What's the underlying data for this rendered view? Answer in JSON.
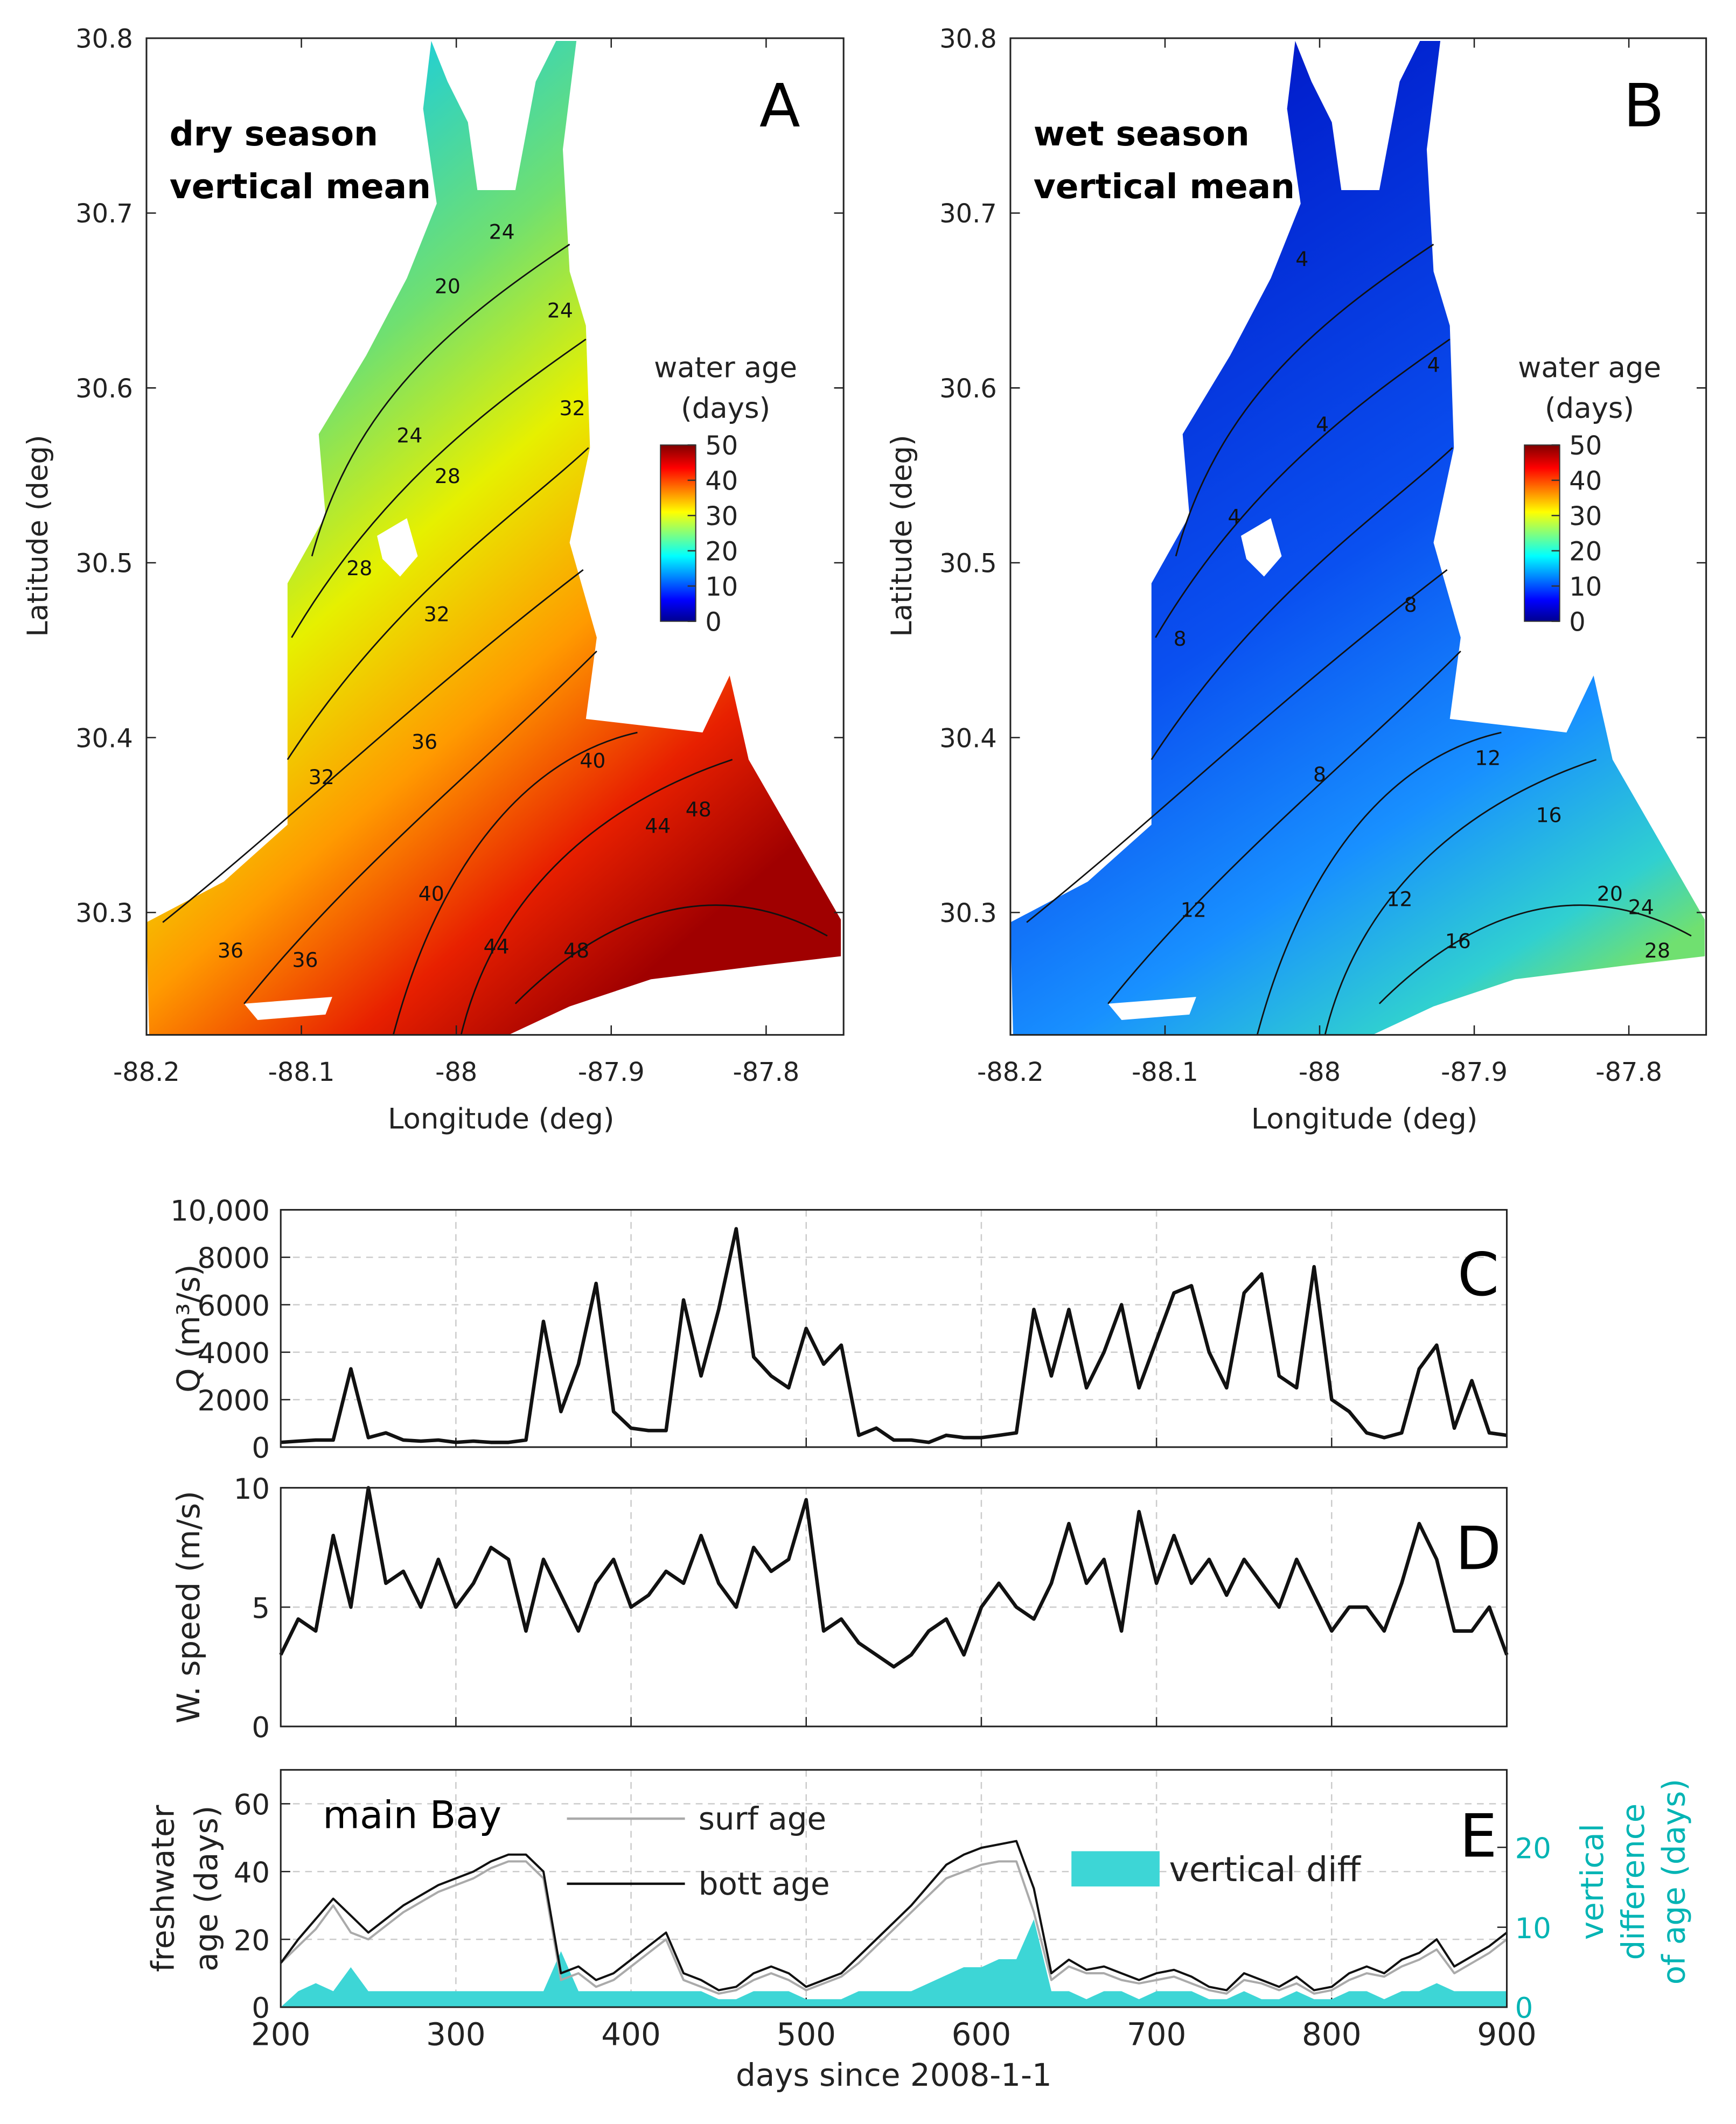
{
  "chart_data": [
    {
      "type": "map",
      "panel": "A",
      "title": [
        "dry season",
        "vertical mean"
      ],
      "xlabel": "Longitude (deg)",
      "ylabel": "Latitude (deg)",
      "xlim": [
        -88.2,
        -87.75
      ],
      "ylim": [
        30.23,
        30.8
      ],
      "xticks": [
        -88.2,
        -88.1,
        -88,
        -87.9,
        -87.8
      ],
      "yticks": [
        30.3,
        30.4,
        30.5,
        30.6,
        30.7,
        30.8
      ],
      "colorbar": {
        "label": [
          "water age",
          "(days)"
        ],
        "lim": [
          0,
          50
        ],
        "ticks": [
          0,
          10,
          20,
          30,
          40,
          50
        ]
      },
      "contour_labels": [
        24,
        20,
        24,
        24,
        28,
        32,
        28,
        32,
        32,
        36,
        40,
        44,
        48,
        40,
        44,
        48,
        36,
        36
      ]
    },
    {
      "type": "map",
      "panel": "B",
      "title": [
        "wet season",
        "vertical mean"
      ],
      "xlabel": "Longitude (deg)",
      "ylabel": "Latitude (deg)",
      "xlim": [
        -88.2,
        -87.75
      ],
      "ylim": [
        30.23,
        30.8
      ],
      "xticks": [
        -88.2,
        -88.1,
        -88,
        -87.9,
        -87.8
      ],
      "yticks": [
        30.3,
        30.4,
        30.5,
        30.6,
        30.7,
        30.8
      ],
      "colorbar": {
        "label": [
          "water age",
          "(days)"
        ],
        "lim": [
          0,
          50
        ],
        "ticks": [
          0,
          10,
          20,
          30,
          40,
          50
        ]
      },
      "contour_labels": [
        4,
        4,
        4,
        4,
        8,
        8,
        8,
        12,
        16,
        12,
        12,
        16,
        20,
        24,
        28
      ]
    },
    {
      "type": "line",
      "panel": "C",
      "ylabel": "Q (m³/s)",
      "xlim": [
        200,
        900
      ],
      "xticks": [
        200,
        300,
        400,
        500,
        600,
        700,
        800,
        900
      ],
      "xtick_labels": false,
      "ylim": [
        0,
        10000
      ],
      "yticks": [
        0,
        2000,
        4000,
        6000,
        8000,
        {
          "value": 10000,
          "label": "10,000"
        }
      ],
      "grid": true,
      "x": [
        200,
        210,
        220,
        230,
        240,
        250,
        260,
        270,
        280,
        290,
        300,
        310,
        320,
        330,
        340,
        350,
        360,
        370,
        380,
        390,
        400,
        410,
        420,
        430,
        440,
        450,
        460,
        470,
        480,
        490,
        500,
        510,
        520,
        530,
        540,
        550,
        560,
        570,
        580,
        590,
        600,
        610,
        620,
        630,
        640,
        650,
        660,
        670,
        680,
        690,
        700,
        710,
        720,
        730,
        740,
        750,
        760,
        770,
        780,
        790,
        800,
        810,
        820,
        830,
        840,
        850,
        860,
        870,
        880,
        890,
        900
      ],
      "series": [
        {
          "color": "#111111",
          "values": [
            200,
            250,
            300,
            300,
            3300,
            400,
            600,
            300,
            250,
            300,
            200,
            250,
            200,
            200,
            300,
            5300,
            1500,
            3500,
            6900,
            1500,
            800,
            700,
            700,
            6200,
            3000,
            5800,
            9200,
            3800,
            3000,
            2500,
            5000,
            3500,
            4300,
            500,
            800,
            300,
            300,
            200,
            500,
            400,
            400,
            500,
            600,
            5800,
            3000,
            5800,
            2500,
            4000,
            6000,
            2500,
            4500,
            6500,
            6800,
            4000,
            2500,
            6500,
            7300,
            3000,
            2500,
            7600,
            2000,
            1500,
            600,
            400,
            600,
            3300,
            4300,
            800,
            2800,
            600,
            500
          ]
        }
      ]
    },
    {
      "type": "line",
      "panel": "D",
      "ylabel": "W. speed (m/s)",
      "xlim": [
        200,
        900
      ],
      "xticks": [
        200,
        300,
        400,
        500,
        600,
        700,
        800,
        900
      ],
      "xtick_labels": false,
      "ylim": [
        0,
        10
      ],
      "yticks": [
        0,
        5,
        10
      ],
      "grid": true,
      "x": [
        200,
        210,
        220,
        230,
        240,
        250,
        260,
        270,
        280,
        290,
        300,
        310,
        320,
        330,
        340,
        350,
        360,
        370,
        380,
        390,
        400,
        410,
        420,
        430,
        440,
        450,
        460,
        470,
        480,
        490,
        500,
        510,
        520,
        530,
        540,
        550,
        560,
        570,
        580,
        590,
        600,
        610,
        620,
        630,
        640,
        650,
        660,
        670,
        680,
        690,
        700,
        710,
        720,
        730,
        740,
        750,
        760,
        770,
        780,
        790,
        800,
        810,
        820,
        830,
        840,
        850,
        860,
        870,
        880,
        890,
        900
      ],
      "series": [
        {
          "color": "#111111",
          "values": [
            3,
            4.5,
            4,
            8,
            5,
            10,
            6,
            6.5,
            5,
            7,
            5,
            6,
            7.5,
            7,
            4,
            7,
            5.5,
            4,
            6,
            7,
            5,
            5.5,
            6.5,
            6,
            8,
            6,
            5,
            7.5,
            6.5,
            7,
            9.5,
            4,
            4.5,
            3.5,
            3,
            2.5,
            3,
            4,
            4.5,
            3,
            5,
            6,
            5,
            4.5,
            6,
            8.5,
            6,
            7,
            4,
            9,
            6,
            8,
            6,
            7,
            5.5,
            7,
            6,
            5,
            7,
            5.5,
            4,
            5,
            5,
            4,
            6,
            8.5,
            7,
            4,
            4,
            5,
            3
          ]
        }
      ]
    },
    {
      "type": "line",
      "panel": "E",
      "annotation": "main Bay",
      "ylabel": [
        "freshwater",
        "age (days)"
      ],
      "y2label": [
        "vertical",
        "difference",
        "of age (days)"
      ],
      "xlabel": "days since 2008-1-1",
      "xlim": [
        200,
        900
      ],
      "xticks": [
        200,
        300,
        400,
        500,
        600,
        700,
        800,
        900
      ],
      "xtick_labels": true,
      "ylim": [
        0,
        70
      ],
      "yticks": [
        0,
        20,
        40,
        60
      ],
      "y2lim": [
        0,
        29.7
      ],
      "y2ticks": [
        0,
        10,
        20
      ],
      "y2color": "#00b4b4",
      "grid": true,
      "x": [
        200,
        210,
        220,
        230,
        240,
        250,
        260,
        270,
        280,
        290,
        300,
        310,
        320,
        330,
        340,
        350,
        360,
        370,
        380,
        390,
        400,
        410,
        420,
        430,
        440,
        450,
        460,
        470,
        480,
        490,
        500,
        510,
        520,
        530,
        540,
        550,
        560,
        570,
        580,
        590,
        600,
        610,
        620,
        630,
        640,
        650,
        660,
        670,
        680,
        690,
        700,
        710,
        720,
        730,
        740,
        750,
        760,
        770,
        780,
        790,
        800,
        810,
        820,
        830,
        840,
        850,
        860,
        870,
        880,
        890,
        900
      ],
      "series": [
        {
          "name": "vertical diff",
          "kind": "area",
          "axis": "y2",
          "color": "#3dd6d6",
          "values": [
            0,
            2,
            3,
            2,
            5,
            2,
            2,
            2,
            2,
            2,
            2,
            2,
            2,
            2,
            2,
            2,
            7,
            2,
            2,
            2,
            2,
            2,
            2,
            2,
            2,
            1,
            1,
            2,
            2,
            2,
            1,
            1,
            1,
            2,
            2,
            2,
            2,
            3,
            4,
            5,
            5,
            6,
            6,
            11,
            2,
            2,
            1,
            2,
            2,
            1,
            2,
            2,
            2,
            1,
            1,
            2,
            1,
            1,
            2,
            1,
            1,
            2,
            2,
            1,
            2,
            2,
            3,
            2,
            2,
            2,
            2
          ]
        },
        {
          "name": "surf age",
          "color": "#aaaaaa",
          "values": [
            13,
            18,
            23,
            30,
            22,
            20,
            24,
            28,
            31,
            34,
            36,
            38,
            41,
            43,
            43,
            38,
            8,
            10,
            6,
            8,
            12,
            16,
            20,
            8,
            6,
            4,
            5,
            8,
            10,
            8,
            5,
            7,
            9,
            13,
            18,
            23,
            28,
            33,
            38,
            40,
            42,
            43,
            43,
            28,
            8,
            12,
            10,
            10,
            8,
            7,
            8,
            9,
            7,
            5,
            4,
            8,
            7,
            5,
            7,
            4,
            5,
            8,
            10,
            9,
            12,
            14,
            17,
            10,
            13,
            16,
            20
          ]
        },
        {
          "name": "bott age",
          "color": "#111111",
          "values": [
            13,
            20,
            26,
            32,
            27,
            22,
            26,
            30,
            33,
            36,
            38,
            40,
            43,
            45,
            45,
            40,
            10,
            12,
            8,
            10,
            14,
            18,
            22,
            10,
            8,
            5,
            6,
            10,
            12,
            10,
            6,
            8,
            10,
            15,
            20,
            25,
            30,
            36,
            42,
            45,
            47,
            48,
            49,
            35,
            10,
            14,
            11,
            12,
            10,
            8,
            10,
            11,
            9,
            6,
            5,
            10,
            8,
            6,
            9,
            5,
            6,
            10,
            12,
            10,
            14,
            16,
            20,
            12,
            15,
            18,
            22
          ]
        }
      ]
    }
  ]
}
